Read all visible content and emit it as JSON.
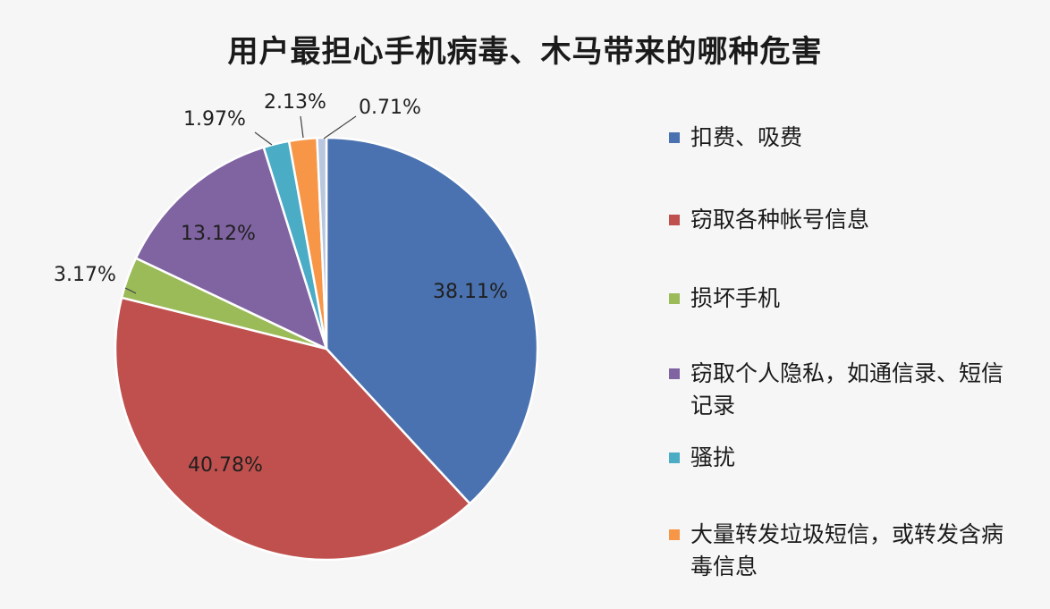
{
  "chart_data": {
    "type": "pie",
    "title": "用户最担心手机病毒、木马带来的哪种危害",
    "legend_position": "right",
    "slices": [
      {
        "name": "扣费、吸费",
        "value": 38.11,
        "label": "38.11%",
        "color": "#4a72b0"
      },
      {
        "name": "窃取各种帐号信息",
        "value": 40.78,
        "label": "40.78%",
        "color": "#c0504d"
      },
      {
        "name": "损坏手机",
        "value": 3.17,
        "label": "3.17%",
        "color": "#9bbb59"
      },
      {
        "name": "窃取个人隐私，如通信录、短信记录",
        "value": 13.12,
        "label": "13.12%",
        "color": "#8064a2"
      },
      {
        "name": "骚扰",
        "value": 1.97,
        "label": "1.97%",
        "color": "#4bacc6"
      },
      {
        "name": "大量转发垃圾短信，或转发含病毒信息",
        "value": 2.13,
        "label": "2.13%",
        "color": "#f79646"
      },
      {
        "name": "",
        "value": 0.71,
        "label": "0.71%",
        "color": "#b8c6de"
      }
    ]
  }
}
